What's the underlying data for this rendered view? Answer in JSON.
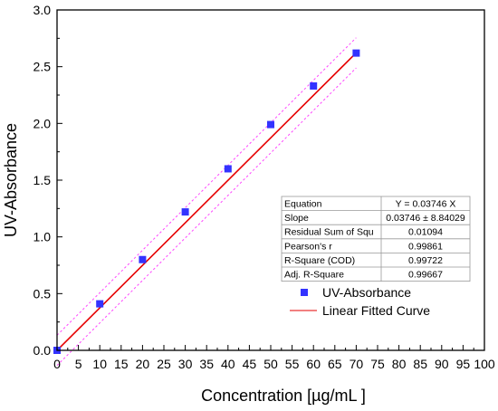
{
  "chart_data": {
    "type": "scatter",
    "xlabel": "Concentration [µg/mL ]",
    "ylabel": "UV-Absorbance",
    "xlim": [
      0,
      100
    ],
    "ylim": [
      0,
      3.0
    ],
    "x_ticks": [
      "0",
      "5",
      "10",
      "15",
      "20",
      "25",
      "30",
      "35",
      "40",
      "45",
      "50",
      "55",
      "60",
      "65",
      "70",
      "75",
      "80",
      "85",
      "90",
      "95",
      "100"
    ],
    "y_ticks": [
      "0.0",
      "0.5",
      "1.0",
      "1.5",
      "2.0",
      "2.5",
      "3.0"
    ],
    "grid": false,
    "legend_position": "bottom-right",
    "series": [
      {
        "name": "UV-Absorbance",
        "kind": "scatter",
        "marker": "square",
        "color": "#3333ff",
        "x": [
          0,
          10,
          20,
          30,
          40,
          50,
          60,
          70
        ],
        "y": [
          0.0,
          0.41,
          0.8,
          1.22,
          1.6,
          1.99,
          2.33,
          2.62
        ]
      },
      {
        "name": "Linear Fitted Curve",
        "kind": "line",
        "color": "#e60000",
        "slope": 0.03746,
        "x_range": [
          0,
          70
        ]
      },
      {
        "kind": "confidence-band",
        "color": "#ff44ff",
        "offset": 0.133,
        "x_range": [
          0,
          70
        ]
      }
    ],
    "stats_table": [
      {
        "label": "Equation",
        "value": "Y = 0.03746 X"
      },
      {
        "label": "Slope",
        "value": "0.03746 ± 8.84029"
      },
      {
        "label": "Residual Sum of Squ",
        "value": "0.01094"
      },
      {
        "label": "Pearson's r",
        "value": "0.99861"
      },
      {
        "label": "R-Square (COD)",
        "value": "0.99722"
      },
      {
        "label": "Adj. R-Square",
        "value": "0.99667"
      }
    ]
  }
}
